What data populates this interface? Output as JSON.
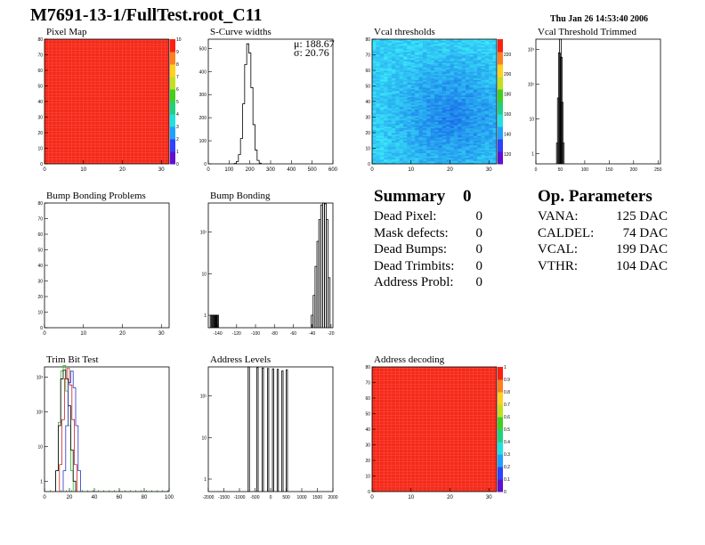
{
  "header": {
    "title": "M7691-13-1/FullTest.root_C11",
    "date": "Thu Jan 26 14:53:40 2006"
  },
  "panels": {
    "pixel_map": {
      "title": "Pixel Map"
    },
    "scurve": {
      "title": "S-Curve widths",
      "stat_mu": "μ: 188.67",
      "stat_sigma": "σ: 20.76"
    },
    "vcal_thr": {
      "title": "Vcal thresholds"
    },
    "vcal_trim": {
      "title": "Vcal Threshold Trimmed"
    },
    "bump_problems": {
      "title": "Bump Bonding Problems"
    },
    "bump": {
      "title": "Bump Bonding"
    },
    "trim_bit": {
      "title": "Trim Bit Test"
    },
    "addr_levels": {
      "title": "Address Levels"
    },
    "addr_decoding": {
      "title": "Address decoding"
    }
  },
  "summary": {
    "heading": "Summary",
    "heading_value": "0",
    "rows": [
      {
        "label": "Dead Pixel:",
        "value": "0"
      },
      {
        "label": "Mask defects:",
        "value": "0"
      },
      {
        "label": "Dead Bumps:",
        "value": "0"
      },
      {
        "label": "Dead Trimbits:",
        "value": "0"
      },
      {
        "label": "Address Probl:",
        "value": "0"
      }
    ]
  },
  "op_parameters": {
    "heading": "Op. Parameters",
    "rows": [
      {
        "label": "VANA:",
        "value": "125 DAC"
      },
      {
        "label": "CALDEL:",
        "value": "74 DAC"
      },
      {
        "label": "VCAL:",
        "value": "199 DAC"
      },
      {
        "label": "VTHR:",
        "value": "104 DAC"
      }
    ]
  },
  "colors": {
    "fill_red": "#f52a1a",
    "grid_line": "#ff8070",
    "trim_green": "#22bb22",
    "trim_blue": "#2233cc",
    "trim_red": "#cc2222"
  },
  "chart_data": [
    {
      "id": "pixel_map",
      "type": "heatmap",
      "title": "Pixel Map",
      "xlim": [
        0,
        32
      ],
      "ylim": [
        0,
        80
      ],
      "xticks": [
        "0",
        "10",
        "20",
        "30"
      ],
      "yticks": [
        "0",
        "10",
        "20",
        "30",
        "40",
        "50",
        "60",
        "70",
        "80"
      ],
      "zlim": [
        0,
        10
      ],
      "zticks": [
        "0",
        "1",
        "2",
        "3",
        "4",
        "5",
        "6",
        "7",
        "8",
        "9",
        "10"
      ],
      "uniform_value": 10
    },
    {
      "id": "scurve",
      "type": "bar",
      "title": "S-Curve widths",
      "xlim": [
        0,
        600
      ],
      "ylim": [
        0,
        540
      ],
      "xticks": [
        "0",
        "100",
        "200",
        "300",
        "400",
        "500",
        "600"
      ],
      "yticks": [
        "0",
        "100",
        "200",
        "300",
        "400",
        "500"
      ],
      "x": [
        130,
        140,
        150,
        160,
        170,
        180,
        190,
        200,
        210,
        220,
        230,
        240,
        250
      ],
      "values": [
        2,
        10,
        40,
        110,
        260,
        430,
        520,
        480,
        330,
        170,
        60,
        15,
        3
      ],
      "mean": 188.67,
      "rms": 20.76
    },
    {
      "id": "vcal_thr",
      "type": "heatmap",
      "title": "Vcal thresholds",
      "xlim": [
        0,
        32
      ],
      "ylim": [
        0,
        80
      ],
      "xticks": [
        "0",
        "10",
        "20",
        "30"
      ],
      "yticks": [
        "0",
        "10",
        "20",
        "30",
        "40",
        "50",
        "60",
        "70",
        "80"
      ],
      "zlim": [
        110,
        235
      ],
      "zticks": [
        "120",
        "140",
        "160",
        "180",
        "200",
        "220"
      ]
    },
    {
      "id": "vcal_trim",
      "type": "bar",
      "title": "Vcal Threshold Trimmed",
      "xlim": [
        0,
        255
      ],
      "log_y": true,
      "xticks": [
        "0",
        "50",
        "100",
        "150",
        "200",
        "250"
      ],
      "yticks": [
        "1",
        "10",
        "10²",
        "10³"
      ],
      "x": [
        44,
        46,
        48,
        50,
        52,
        54,
        56
      ],
      "values": [
        2,
        40,
        800,
        2000,
        600,
        30,
        2
      ]
    },
    {
      "id": "bump_problems",
      "type": "heatmap",
      "title": "Bump Bonding Problems",
      "xlim": [
        0,
        32
      ],
      "ylim": [
        0,
        80
      ],
      "xticks": [
        "0",
        "10",
        "20",
        "30"
      ],
      "yticks": [
        "0",
        "10",
        "20",
        "30",
        "40",
        "50",
        "60",
        "70",
        "80"
      ],
      "empty": true
    },
    {
      "id": "bump",
      "type": "bar",
      "title": "Bump Bonding",
      "log_y": true,
      "xlim": [
        -150,
        -18
      ],
      "xticks": [
        "-140",
        "-120",
        "-100",
        "-80",
        "-60",
        "-40",
        "-20"
      ],
      "yticks": [
        "1",
        "10",
        "10²"
      ],
      "x": [
        -147,
        -146,
        -145,
        -144,
        -143,
        -142,
        -141,
        -140,
        -40,
        -38,
        -36,
        -34,
        -32,
        -30,
        -28,
        -26,
        -24,
        -22
      ],
      "values": [
        1,
        1,
        1,
        1,
        1,
        1,
        1,
        1,
        1,
        3,
        15,
        60,
        200,
        450,
        500,
        480,
        200,
        8
      ]
    },
    {
      "id": "trim_bit",
      "type": "line",
      "title": "Trim Bit Test",
      "log_y": true,
      "xlim": [
        0,
        100
      ],
      "xticks": [
        "0",
        "20",
        "40",
        "60",
        "80",
        "100"
      ],
      "yticks": [
        "1",
        "10",
        "10²",
        "10³"
      ],
      "series": [
        {
          "color": "#22bb22",
          "x": [
            10,
            12,
            14,
            16,
            18,
            20,
            22
          ],
          "values": [
            2,
            50,
            1500,
            2200,
            400,
            40,
            2
          ]
        },
        {
          "color": "#000000",
          "x": [
            10,
            12,
            14,
            16,
            18,
            20,
            22,
            24
          ],
          "values": [
            2,
            40,
            900,
            1600,
            900,
            150,
            8,
            1
          ]
        },
        {
          "color": "#cc2222",
          "x": [
            13,
            15,
            17,
            19,
            21,
            23,
            25
          ],
          "values": [
            3,
            60,
            900,
            1800,
            600,
            60,
            3
          ]
        },
        {
          "color": "#2233cc",
          "x": [
            16,
            18,
            20,
            22,
            24,
            26,
            28
          ],
          "values": [
            2,
            40,
            700,
            1500,
            500,
            40,
            2
          ]
        }
      ]
    },
    {
      "id": "addr_levels",
      "type": "bar",
      "title": "Address Levels",
      "log_y": true,
      "xlim": [
        -2000,
        2000
      ],
      "xticks": [
        "-2000",
        "-1500",
        "-1000",
        "-500",
        "0",
        "500",
        "1000",
        "1500",
        "2000"
      ],
      "yticks": [
        "1",
        "10",
        "10²"
      ],
      "x": [
        -700,
        -420,
        -250,
        -80,
        80,
        230,
        380,
        520
      ],
      "values": [
        500,
        480,
        470,
        460,
        450,
        440,
        400,
        430
      ]
    },
    {
      "id": "addr_decoding",
      "type": "heatmap",
      "title": "Address decoding",
      "xlim": [
        0,
        32
      ],
      "ylim": [
        0,
        80
      ],
      "xticks": [
        "0",
        "10",
        "20",
        "30"
      ],
      "yticks": [
        "0",
        "10",
        "20",
        "30",
        "40",
        "50",
        "60",
        "70",
        "80"
      ],
      "zlim": [
        0,
        1
      ],
      "zticks": [
        "0",
        "0.1",
        "0.2",
        "0.3",
        "0.4",
        "0.5",
        "0.6",
        "0.7",
        "0.8",
        "0.9",
        "1"
      ],
      "uniform_value": 1
    }
  ]
}
